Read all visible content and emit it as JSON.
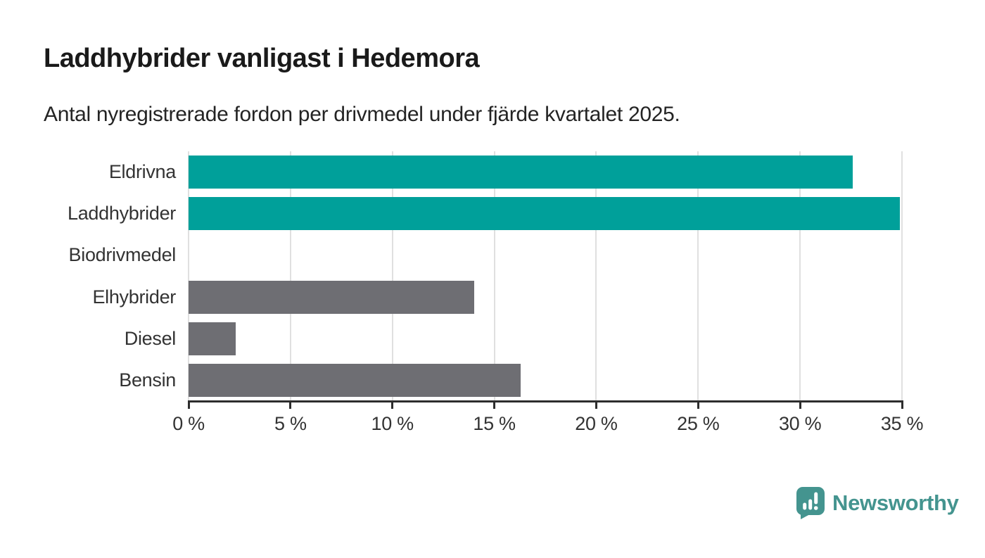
{
  "header": {
    "title": "Laddhybrider vanligast i Hedemora",
    "subtitle": "Antal nyregistrerade fordon per drivmedel under fjärde kvartalet 2025."
  },
  "chart_data": {
    "type": "bar",
    "orientation": "horizontal",
    "title": "Laddhybrider vanligast i Hedemora",
    "subtitle": "Antal nyregistrerade fordon per drivmedel under fjärde kvartalet 2025.",
    "categories": [
      "Eldrivna",
      "Laddhybrider",
      "Biodrivmedel",
      "Elhybrider",
      "Diesel",
      "Bensin"
    ],
    "values": [
      32.6,
      34.9,
      0,
      14.0,
      2.3,
      16.3
    ],
    "value_unit": "%",
    "bar_colors": [
      "#00a09a",
      "#00a09a",
      "#6e6e73",
      "#6e6e73",
      "#6e6e73",
      "#6e6e73"
    ],
    "highlight_color": "#00a09a",
    "neutral_color": "#6e6e73",
    "xlim": [
      0,
      35
    ],
    "xticks": [
      0,
      5,
      10,
      15,
      20,
      25,
      30,
      35
    ],
    "xtick_labels": [
      "0 %",
      "5 %",
      "10 %",
      "15 %",
      "20 %",
      "25 %",
      "30 %",
      "35 %"
    ],
    "xlabel": "",
    "ylabel": "",
    "grid": true,
    "legend": false
  },
  "footer": {
    "brand": "Newsworthy",
    "brand_color": "#44948f",
    "icon": "newsworthy-speech-bubble-bar-chart-icon"
  }
}
